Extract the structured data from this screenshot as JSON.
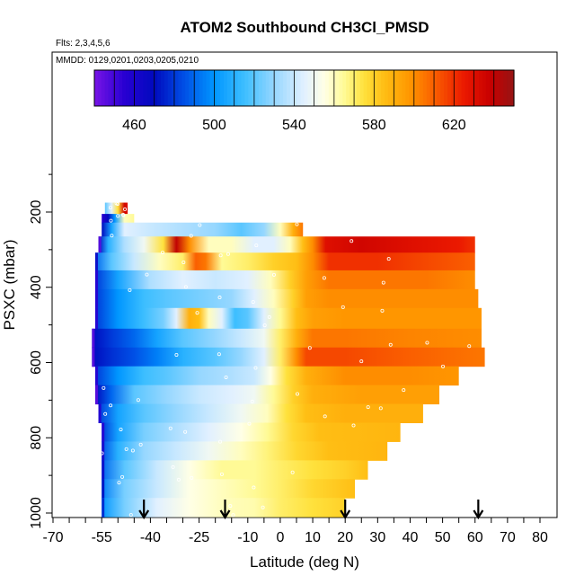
{
  "chart_data": {
    "type": "heatmap",
    "title": "ATOM2 Southbound CH3Cl_PMSD",
    "subtitle_flights": "Flts: 2,3,4,5,6",
    "subtitle_dates": "MMDD: 0129,0201,0203,0205,0210",
    "xlabel": "Latitude (deg N)",
    "ylabel": "PSXC (mbar)",
    "xlim": [
      -70,
      80
    ],
    "ylim": [
      1000,
      100
    ],
    "x_ticks": [
      -70,
      -55,
      -40,
      -25,
      -10,
      0,
      10,
      20,
      30,
      40,
      50,
      60,
      70,
      80
    ],
    "y_ticks": [
      200,
      400,
      600,
      800,
      1000
    ],
    "colorbar": {
      "range": [
        440,
        650
      ],
      "ticks": [
        460,
        500,
        540,
        580,
        620
      ]
    },
    "markers_latitudes": [
      -42,
      -17,
      20,
      61
    ],
    "layers": [
      {
        "p_top": 175,
        "p_bot": 205,
        "lat_min": -54,
        "lat_max": -47,
        "values": [
          [
            -54,
            520
          ],
          [
            -52,
            545
          ],
          [
            -50,
            575
          ],
          [
            -48,
            635
          ],
          [
            -47,
            630
          ]
        ]
      },
      {
        "p_top": 205,
        "p_bot": 228,
        "lat_min": -55,
        "lat_max": -45,
        "values": [
          [
            -55,
            455
          ],
          [
            -53,
            470
          ],
          [
            -51,
            500
          ],
          [
            -48,
            560
          ],
          [
            -45,
            565
          ]
        ]
      },
      {
        "p_top": 228,
        "p_bot": 265,
        "lat_min": -55,
        "lat_max": 7,
        "values": [
          [
            -55,
            470
          ],
          [
            -52,
            505
          ],
          [
            -48,
            545
          ],
          [
            -40,
            540
          ],
          [
            -30,
            535
          ],
          [
            -20,
            530
          ],
          [
            -12,
            520
          ],
          [
            -5,
            530
          ],
          [
            0,
            560
          ],
          [
            4,
            590
          ],
          [
            7,
            605
          ]
        ]
      },
      {
        "p_top": 265,
        "p_bot": 308,
        "lat_min": -56,
        "lat_max": 60,
        "values": [
          [
            -56,
            470
          ],
          [
            -53,
            510
          ],
          [
            -48,
            535
          ],
          [
            -42,
            550
          ],
          [
            -36,
            575
          ],
          [
            -32,
            640
          ],
          [
            -28,
            600
          ],
          [
            -22,
            560
          ],
          [
            -15,
            560
          ],
          [
            -8,
            545
          ],
          [
            -2,
            545
          ],
          [
            3,
            560
          ],
          [
            7,
            585
          ],
          [
            10,
            600
          ],
          [
            14,
            630
          ],
          [
            25,
            635
          ],
          [
            40,
            630
          ],
          [
            55,
            625
          ],
          [
            60,
            620
          ]
        ]
      },
      {
        "p_top": 308,
        "p_bot": 355,
        "lat_min": -57,
        "lat_max": 60,
        "values": [
          [
            -57,
            490
          ],
          [
            -52,
            520
          ],
          [
            -45,
            540
          ],
          [
            -37,
            560
          ],
          [
            -30,
            570
          ],
          [
            -26,
            610
          ],
          [
            -23,
            605
          ],
          [
            -18,
            565
          ],
          [
            -10,
            570
          ],
          [
            -2,
            580
          ],
          [
            5,
            585
          ],
          [
            10,
            600
          ],
          [
            15,
            620
          ],
          [
            30,
            620
          ],
          [
            45,
            615
          ],
          [
            60,
            610
          ]
        ]
      },
      {
        "p_top": 355,
        "p_bot": 405,
        "lat_min": -57,
        "lat_max": 60,
        "values": [
          [
            -57,
            480
          ],
          [
            -50,
            505
          ],
          [
            -40,
            535
          ],
          [
            -30,
            545
          ],
          [
            -20,
            540
          ],
          [
            -10,
            545
          ],
          [
            -3,
            560
          ],
          [
            3,
            580
          ],
          [
            8,
            595
          ],
          [
            15,
            605
          ],
          [
            30,
            605
          ],
          [
            45,
            605
          ],
          [
            60,
            600
          ]
        ]
      },
      {
        "p_top": 405,
        "p_bot": 455,
        "lat_min": -57,
        "lat_max": 61,
        "values": [
          [
            -57,
            480
          ],
          [
            -50,
            500
          ],
          [
            -42,
            515
          ],
          [
            -35,
            520
          ],
          [
            -25,
            525
          ],
          [
            -15,
            530
          ],
          [
            -8,
            545
          ],
          [
            -2,
            560
          ],
          [
            4,
            580
          ],
          [
            8,
            595
          ],
          [
            15,
            600
          ],
          [
            30,
            600
          ],
          [
            45,
            600
          ],
          [
            61,
            600
          ]
        ]
      },
      {
        "p_top": 455,
        "p_bot": 510,
        "lat_min": -57,
        "lat_max": 62,
        "values": [
          [
            -57,
            480
          ],
          [
            -50,
            500
          ],
          [
            -42,
            515
          ],
          [
            -36,
            525
          ],
          [
            -32,
            545
          ],
          [
            -28,
            590
          ],
          [
            -25,
            585
          ],
          [
            -22,
            560
          ],
          [
            -18,
            545
          ],
          [
            -14,
            515
          ],
          [
            -10,
            520
          ],
          [
            -5,
            545
          ],
          [
            0,
            565
          ],
          [
            5,
            585
          ],
          [
            10,
            595
          ],
          [
            20,
            598
          ],
          [
            40,
            598
          ],
          [
            62,
            598
          ]
        ]
      },
      {
        "p_top": 510,
        "p_bot": 560,
        "lat_min": -58,
        "lat_max": 62,
        "values": [
          [
            -58,
            470
          ],
          [
            -52,
            480
          ],
          [
            -45,
            490
          ],
          [
            -38,
            505
          ],
          [
            -30,
            520
          ],
          [
            -20,
            530
          ],
          [
            -12,
            540
          ],
          [
            -5,
            550
          ],
          [
            0,
            570
          ],
          [
            5,
            590
          ],
          [
            10,
            605
          ],
          [
            20,
            605
          ],
          [
            40,
            602
          ],
          [
            62,
            600
          ]
        ]
      },
      {
        "p_top": 560,
        "p_bot": 610,
        "lat_min": -58,
        "lat_max": 63,
        "values": [
          [
            -58,
            470
          ],
          [
            -52,
            478
          ],
          [
            -45,
            485
          ],
          [
            -38,
            495
          ],
          [
            -30,
            510
          ],
          [
            -20,
            520
          ],
          [
            -12,
            530
          ],
          [
            -5,
            545
          ],
          [
            0,
            570
          ],
          [
            5,
            600
          ],
          [
            8,
            615
          ],
          [
            20,
            615
          ],
          [
            40,
            610
          ],
          [
            63,
            605
          ]
        ]
      },
      {
        "p_top": 610,
        "p_bot": 660,
        "lat_min": -57,
        "lat_max": 55,
        "values": [
          [
            -57,
            480
          ],
          [
            -50,
            500
          ],
          [
            -42,
            515
          ],
          [
            -35,
            520
          ],
          [
            -25,
            530
          ],
          [
            -15,
            535
          ],
          [
            -8,
            540
          ],
          [
            -3,
            555
          ],
          [
            2,
            575
          ],
          [
            8,
            590
          ],
          [
            20,
            600
          ],
          [
            40,
            600
          ],
          [
            55,
            598
          ]
        ]
      },
      {
        "p_top": 660,
        "p_bot": 710,
        "lat_min": -57,
        "lat_max": 49,
        "values": [
          [
            -57,
            470
          ],
          [
            -52,
            490
          ],
          [
            -45,
            520
          ],
          [
            -35,
            530
          ],
          [
            -25,
            540
          ],
          [
            -15,
            545
          ],
          [
            -8,
            550
          ],
          [
            -2,
            565
          ],
          [
            4,
            580
          ],
          [
            10,
            590
          ],
          [
            25,
            595
          ],
          [
            49,
            595
          ]
        ]
      },
      {
        "p_top": 710,
        "p_bot": 760,
        "lat_min": -56,
        "lat_max": 44,
        "values": [
          [
            -56,
            480
          ],
          [
            -50,
            505
          ],
          [
            -42,
            520
          ],
          [
            -32,
            530
          ],
          [
            -22,
            540
          ],
          [
            -12,
            550
          ],
          [
            -4,
            560
          ],
          [
            2,
            575
          ],
          [
            8,
            585
          ],
          [
            20,
            590
          ],
          [
            44,
            590
          ]
        ]
      },
      {
        "p_top": 760,
        "p_bot": 810,
        "lat_min": -55,
        "lat_max": 37,
        "values": [
          [
            -55,
            480
          ],
          [
            -50,
            505
          ],
          [
            -42,
            525
          ],
          [
            -32,
            535
          ],
          [
            -22,
            545
          ],
          [
            -12,
            555
          ],
          [
            -4,
            565
          ],
          [
            4,
            578
          ],
          [
            12,
            585
          ],
          [
            37,
            588
          ]
        ]
      },
      {
        "p_top": 810,
        "p_bot": 860,
        "lat_min": -55,
        "lat_max": 33,
        "values": [
          [
            -55,
            485
          ],
          [
            -50,
            510
          ],
          [
            -42,
            530
          ],
          [
            -32,
            540
          ],
          [
            -22,
            550
          ],
          [
            -12,
            560
          ],
          [
            -4,
            568
          ],
          [
            5,
            578
          ],
          [
            15,
            585
          ],
          [
            33,
            588
          ]
        ]
      },
      {
        "p_top": 860,
        "p_bot": 910,
        "lat_min": -55,
        "lat_max": 27,
        "values": [
          [
            -55,
            490
          ],
          [
            -48,
            520
          ],
          [
            -38,
            540
          ],
          [
            -28,
            555
          ],
          [
            -18,
            565
          ],
          [
            -8,
            565
          ],
          [
            0,
            570
          ],
          [
            10,
            575
          ],
          [
            20,
            580
          ],
          [
            27,
            585
          ]
        ]
      },
      {
        "p_top": 910,
        "p_bot": 960,
        "lat_min": -55,
        "lat_max": 23,
        "values": [
          [
            -55,
            495
          ],
          [
            -48,
            525
          ],
          [
            -38,
            540
          ],
          [
            -28,
            555
          ],
          [
            -18,
            560
          ],
          [
            -8,
            565
          ],
          [
            0,
            570
          ],
          [
            10,
            578
          ],
          [
            23,
            585
          ]
        ]
      },
      {
        "p_top": 960,
        "p_bot": 1010,
        "lat_min": -55,
        "lat_max": 20,
        "values": [
          [
            -55,
            500
          ],
          [
            -48,
            525
          ],
          [
            -38,
            545
          ],
          [
            -28,
            555
          ],
          [
            -18,
            560
          ],
          [
            -8,
            562
          ],
          [
            0,
            570
          ],
          [
            10,
            575
          ],
          [
            20,
            580
          ]
        ]
      }
    ]
  }
}
